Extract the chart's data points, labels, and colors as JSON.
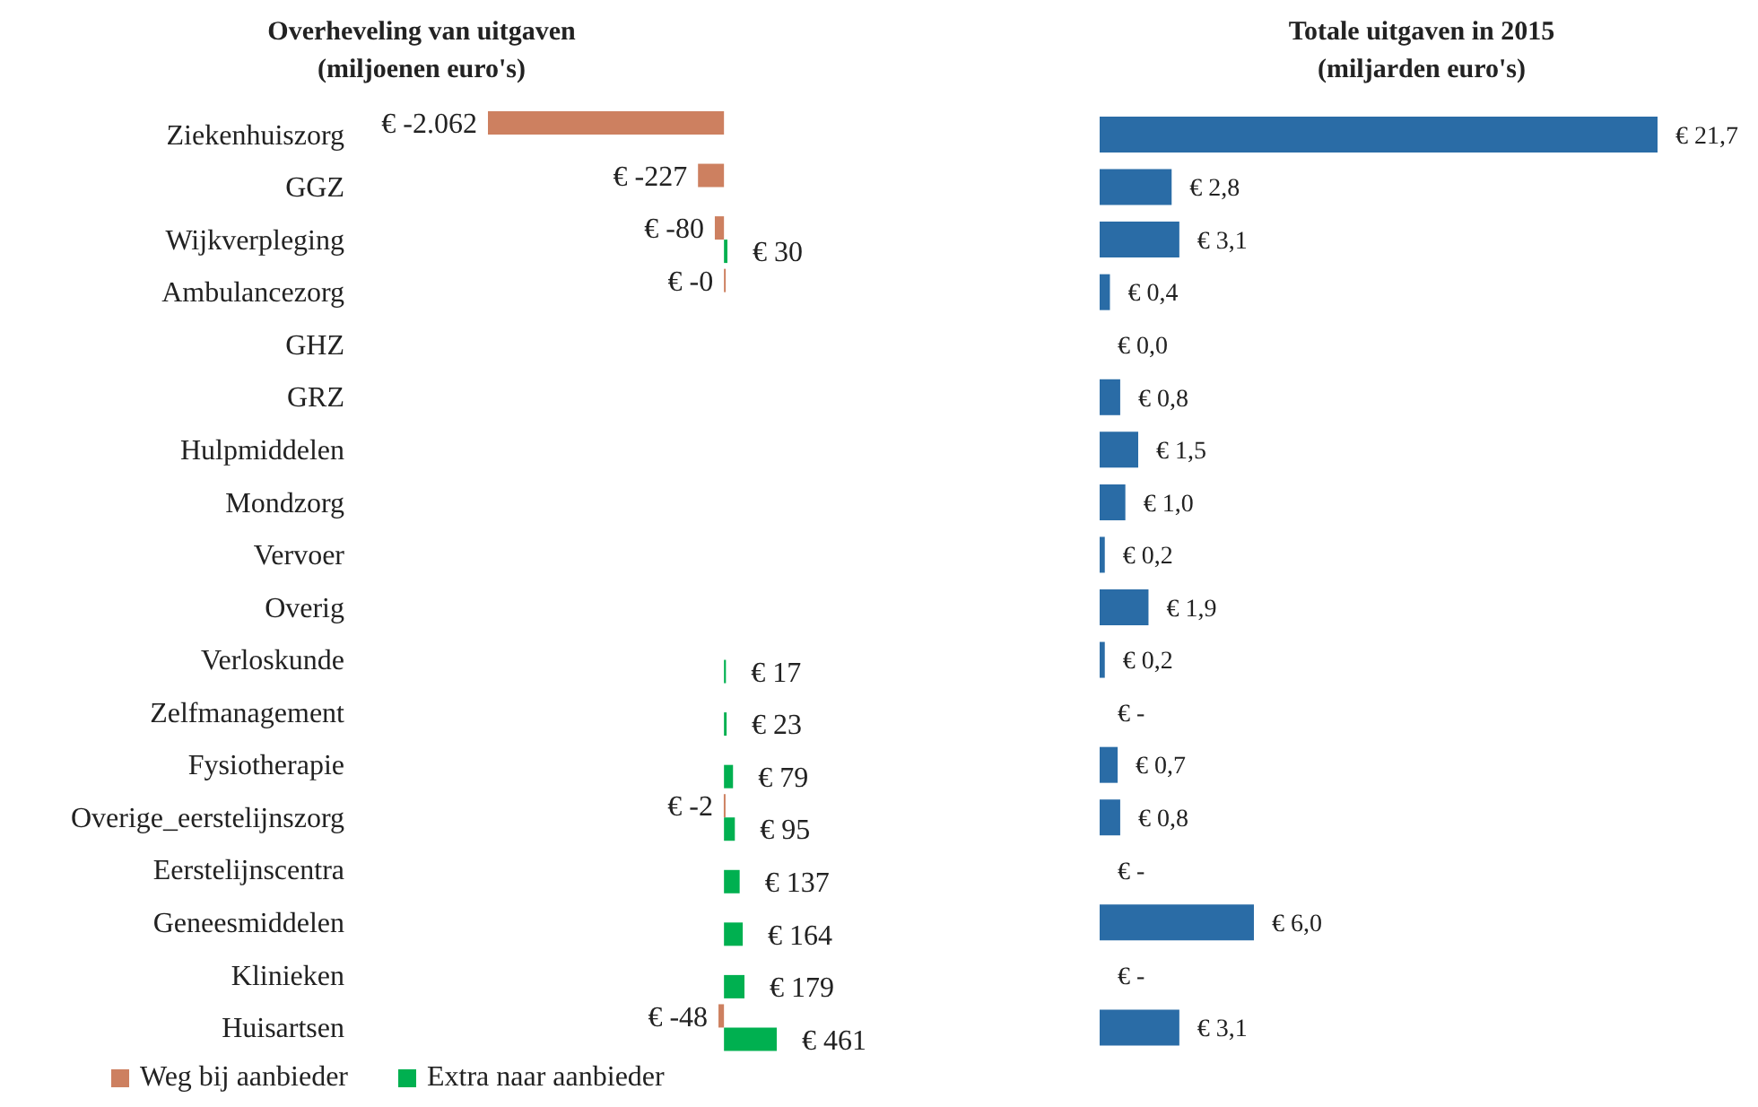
{
  "chart_data": [
    {
      "type": "bar",
      "orientation": "horizontal",
      "title": "Overheveling van uitgaven\n(miljoenen euro's)",
      "categories": [
        "Ziekenhuiszorg",
        "GGZ",
        "Wijkverpleging",
        "Ambulancezorg",
        "GHZ",
        "GRZ",
        "Hulpmiddelen",
        "Mondzorg",
        "Vervoer",
        "Overig",
        "Verloskunde",
        "Zelfmanagement",
        "Fysiotherapie",
        "Overige_eerstelijnszorg",
        "Eerstelijnscentra",
        "Geneesmiddelen",
        "Klinieken",
        "Huisartsen"
      ],
      "tick_labels": "y",
      "legend": "bottom left",
      "series": [
        {
          "name": "Weg bij aanbieder",
          "color": "#cd8060",
          "values": [
            -2062,
            -227,
            -80,
            -0.3,
            null,
            null,
            null,
            null,
            null,
            null,
            null,
            null,
            null,
            -2,
            null,
            null,
            null,
            -48
          ],
          "value_labels": [
            "€ -2.062",
            "€ -227",
            "€ -80",
            "€ -0",
            null,
            null,
            null,
            null,
            null,
            null,
            null,
            null,
            null,
            "€ -2",
            null,
            null,
            null,
            "€ -48"
          ]
        },
        {
          "name": "Extra naar aanbieder",
          "color": "#00b050",
          "values": [
            null,
            null,
            30,
            null,
            null,
            null,
            null,
            null,
            null,
            null,
            17,
            23,
            79,
            95,
            137,
            164,
            179,
            461
          ],
          "value_labels": [
            null,
            null,
            "€ 30",
            null,
            null,
            null,
            null,
            null,
            null,
            null,
            "€ 17",
            "€ 23",
            "€ 79",
            "€ 95",
            "€ 137",
            "€ 164",
            "€ 179",
            "€ 461"
          ]
        }
      ]
    },
    {
      "type": "bar",
      "orientation": "horizontal",
      "title": "Totale uitgaven in 2015\n(miljarden euro's)",
      "categories": [
        null,
        null,
        null,
        null,
        null,
        null,
        null,
        null,
        null,
        null,
        null,
        null,
        null,
        null,
        null,
        null,
        null,
        null
      ],
      "tick_labels": false,
      "series": [
        {
          "color": "#2a6ca6",
          "values": [
            21.7,
            2.8,
            3.1,
            0.4,
            0,
            0.8,
            1.5,
            1.0,
            0.2,
            1.9,
            0.2,
            0,
            0.7,
            0.8,
            0,
            6.0,
            0,
            3.1
          ],
          "value_labels": [
            "€ 21,7",
            "€ 2,8",
            "€ 3,1",
            "€ 0,4",
            "€ 0,0",
            "€ 0,8",
            "€ 1,5",
            "€ 1,0",
            "€ 0,2",
            "€ 1,9",
            "€ 0,2",
            "€ -",
            "€ 0,7",
            "€ 0,8",
            "€ -",
            "€ 6,0",
            "€ -",
            "€ 3,1"
          ]
        }
      ]
    }
  ]
}
